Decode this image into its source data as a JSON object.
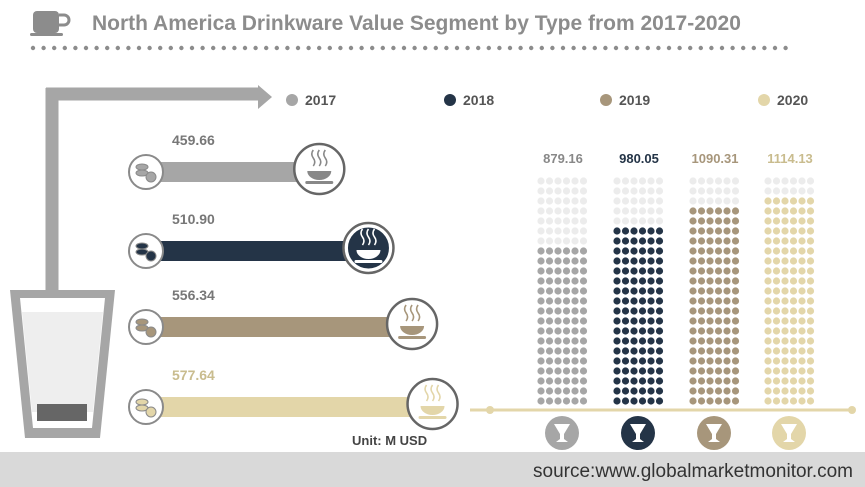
{
  "chart_data": {
    "type": "bar",
    "title": "North America Drinkware Value Segment by Type from 2017-2020",
    "categories": [
      "2017",
      "2018",
      "2019",
      "2020"
    ],
    "values": [
      459.66,
      510.9,
      556.34,
      577.64
    ],
    "value_labels": [
      "459.66",
      "510.90",
      "556.34",
      "577.64"
    ],
    "dot_values": [
      879.16,
      980.05,
      1090.31,
      1114.13
    ],
    "dot_labels": [
      "879.16",
      "980.05",
      "1090.31",
      "1114.13"
    ],
    "unit": "Unit: M USD",
    "legend_placement": "top",
    "grid": false
  },
  "colors": {
    "2017": "#a6a6a6",
    "2018": "#243447",
    "2019": "#a7967b",
    "2020": "#e3d6a9",
    "dot_empty": "#ececec",
    "title": "#8c8c8c"
  },
  "icons": [
    "coffee-cup-icon",
    "coins-icon",
    "steaming-bowl-icon",
    "goblet-icon",
    "glass-icon"
  ],
  "footer": {
    "source": "source:www.globalmarketmonitor.com"
  }
}
